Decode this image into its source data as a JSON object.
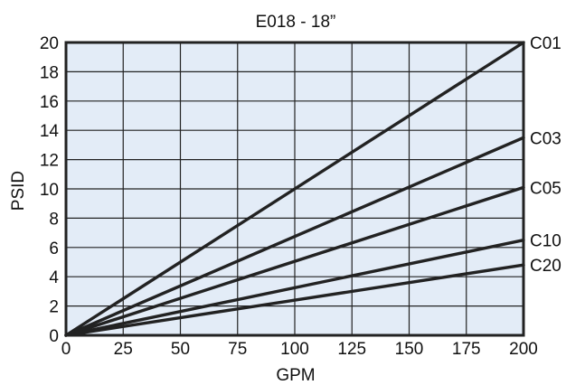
{
  "chart_data": {
    "type": "line",
    "title": "E018 - 18”",
    "xlabel": "GPM",
    "ylabel": "PSID",
    "xlim": [
      0,
      200
    ],
    "ylim": [
      0,
      20
    ],
    "xticks": [
      0,
      25,
      50,
      75,
      100,
      125,
      150,
      175,
      200
    ],
    "yticks": [
      0,
      2,
      4,
      6,
      8,
      10,
      12,
      14,
      16,
      18,
      20
    ],
    "grid": true,
    "legend": "none; series named by labels at right end of each line",
    "series": [
      {
        "name": "C01",
        "x": [
          0,
          200
        ],
        "y": [
          0,
          20.0
        ]
      },
      {
        "name": "C03",
        "x": [
          0,
          200
        ],
        "y": [
          0,
          13.5
        ]
      },
      {
        "name": "C05",
        "x": [
          0,
          200
        ],
        "y": [
          0,
          10.1
        ]
      },
      {
        "name": "C10",
        "x": [
          0,
          200
        ],
        "y": [
          0,
          6.5
        ]
      },
      {
        "name": "C20",
        "x": [
          0,
          200
        ],
        "y": [
          0,
          4.8
        ]
      }
    ]
  },
  "colors": {
    "plot_background": "#e3ecf7",
    "grid": "#222222",
    "line": "#222222",
    "text": "#111111"
  }
}
